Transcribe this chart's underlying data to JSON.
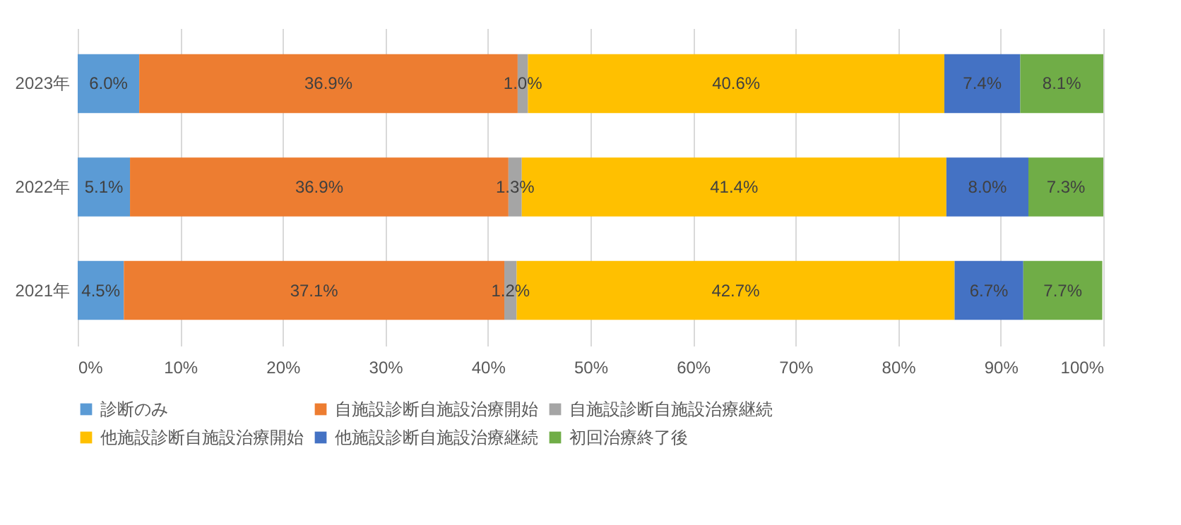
{
  "chart_data": {
    "type": "bar",
    "orientation": "horizontal",
    "stacked": true,
    "categories": [
      "2023年",
      "2022年",
      "2021年"
    ],
    "series": [
      {
        "name": "診断のみ",
        "color": "#5b9bd5",
        "values": [
          6.0,
          5.1,
          4.5
        ],
        "value_labels": [
          "6.0%",
          "5.1%",
          "4.5%"
        ]
      },
      {
        "name": "自施設診断自施設治療開始",
        "color": "#ed7d31",
        "values": [
          36.9,
          36.9,
          37.1
        ],
        "value_labels": [
          "36.9%",
          "36.9%",
          "37.1%"
        ]
      },
      {
        "name": "自施設診断自施設治療継続",
        "color": "#a5a5a5",
        "values": [
          1.0,
          1.3,
          1.2
        ],
        "value_labels": [
          "1.0%",
          "1.3%",
          "1.2%"
        ]
      },
      {
        "name": "他施設診断自施設治療開始",
        "color": "#ffc000",
        "values": [
          40.6,
          41.4,
          42.7
        ],
        "value_labels": [
          "40.6%",
          "41.4%",
          "42.7%"
        ]
      },
      {
        "name": "他施設診断自施設治療継続",
        "color": "#4472c4",
        "values": [
          7.4,
          8.0,
          6.7
        ],
        "value_labels": [
          "7.4%",
          "8.0%",
          "6.7%"
        ]
      },
      {
        "name": "初回治療終了後",
        "color": "#70ad47",
        "values": [
          8.1,
          7.3,
          7.7
        ],
        "value_labels": [
          "8.1%",
          "7.3%",
          "7.7%"
        ]
      }
    ],
    "xlim": [
      0,
      100
    ],
    "xticks": [
      {
        "value": 0,
        "label": "0%"
      },
      {
        "value": 10,
        "label": "10%"
      },
      {
        "value": 20,
        "label": "20%"
      },
      {
        "value": 30,
        "label": "30%"
      },
      {
        "value": 40,
        "label": "40%"
      },
      {
        "value": 50,
        "label": "50%"
      },
      {
        "value": 60,
        "label": "60%"
      },
      {
        "value": 70,
        "label": "70%"
      },
      {
        "value": 80,
        "label": "80%"
      },
      {
        "value": 90,
        "label": "90%"
      },
      {
        "value": 100,
        "label": "100%"
      }
    ],
    "grid": "x",
    "legend": "bottom"
  }
}
